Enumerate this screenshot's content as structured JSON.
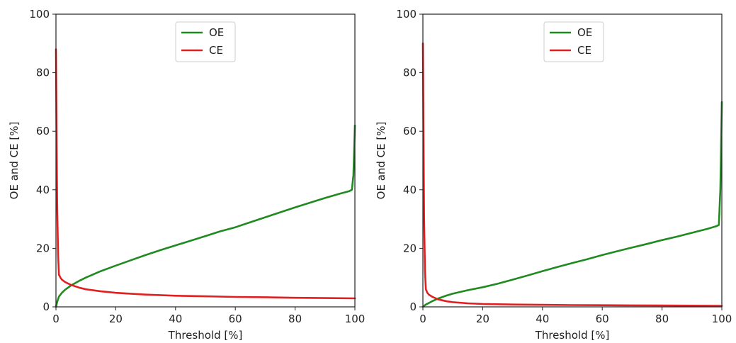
{
  "chart_data": [
    {
      "type": "line",
      "xlabel": "Threshold [%]",
      "ylabel": "OE and CE [%]",
      "xlim": [
        0,
        100
      ],
      "ylim": [
        0,
        100
      ],
      "xticks": [
        "0",
        "20",
        "40",
        "60",
        "80",
        "100"
      ],
      "yticks": [
        "0",
        "20",
        "40",
        "60",
        "80",
        "100"
      ],
      "grid": false,
      "legend": "top-center",
      "series": [
        {
          "name": "OE",
          "color": "#1f8a1f",
          "x": [
            0,
            0.5,
            1,
            2,
            3,
            5,
            8,
            10,
            15,
            20,
            25,
            30,
            35,
            40,
            45,
            50,
            55,
            60,
            65,
            70,
            75,
            80,
            85,
            90,
            95,
            98,
            99,
            99.5,
            100
          ],
          "y": [
            0,
            2,
            3.5,
            4.8,
            5.8,
            7.3,
            9,
            10,
            12.2,
            14.1,
            15.9,
            17.7,
            19.4,
            21,
            22.6,
            24.2,
            25.8,
            27.2,
            28.9,
            30.6,
            32.3,
            34,
            35.6,
            37.2,
            38.7,
            39.5,
            40,
            45,
            62
          ]
        },
        {
          "name": "CE",
          "color": "#e02020",
          "x": [
            0,
            0.2,
            0.4,
            0.7,
            1,
            1.5,
            2,
            3,
            5,
            8,
            10,
            15,
            20,
            30,
            40,
            50,
            60,
            70,
            80,
            90,
            100
          ],
          "y": [
            88,
            60,
            35,
            18,
            11,
            10,
            9.3,
            8.5,
            7.5,
            6.5,
            6,
            5.3,
            4.8,
            4.2,
            3.8,
            3.6,
            3.4,
            3.3,
            3.1,
            3.0,
            2.9
          ]
        }
      ]
    },
    {
      "type": "line",
      "xlabel": "Threshold [%]",
      "ylabel": "OE and CE [%]",
      "xlim": [
        0,
        100
      ],
      "ylim": [
        0,
        100
      ],
      "xticks": [
        "0",
        "20",
        "40",
        "60",
        "80",
        "100"
      ],
      "yticks": [
        "0",
        "20",
        "40",
        "60",
        "80",
        "100"
      ],
      "grid": false,
      "legend": "top-center",
      "series": [
        {
          "name": "OE",
          "color": "#1f8a1f",
          "x": [
            0,
            1,
            2,
            3,
            5,
            8,
            10,
            15,
            20,
            25,
            30,
            35,
            40,
            45,
            50,
            55,
            60,
            65,
            70,
            75,
            80,
            85,
            90,
            95,
            98,
            99,
            99.5,
            100
          ],
          "y": [
            0,
            0.8,
            1.3,
            1.9,
            2.8,
            3.9,
            4.5,
            5.7,
            6.7,
            7.9,
            9.3,
            10.7,
            12.2,
            13.6,
            15,
            16.3,
            17.7,
            19,
            20.3,
            21.5,
            22.8,
            24,
            25.3,
            26.6,
            27.5,
            28,
            40,
            70
          ]
        },
        {
          "name": "CE",
          "color": "#e02020",
          "x": [
            0,
            0.2,
            0.4,
            0.7,
            1,
            1.5,
            2,
            3,
            5,
            8,
            10,
            15,
            20,
            30,
            40,
            50,
            60,
            70,
            80,
            90,
            100
          ],
          "y": [
            90,
            60,
            30,
            12,
            6,
            4.8,
            4.2,
            3.5,
            2.6,
            1.9,
            1.6,
            1.2,
            1.0,
            0.8,
            0.7,
            0.6,
            0.55,
            0.5,
            0.45,
            0.4,
            0.35
          ]
        }
      ]
    }
  ]
}
